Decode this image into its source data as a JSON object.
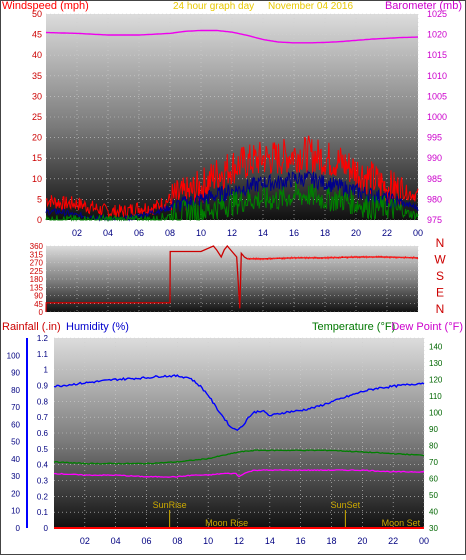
{
  "header": {
    "windspeed_label": "Windspeed (mph)",
    "period_label": "24 hour graph day",
    "date_label": "November 04 2016",
    "barometer_label": "Barometer (mb)"
  },
  "mid_panel": {
    "direction_labels": [
      "N",
      "W",
      "S",
      "E",
      "N"
    ]
  },
  "lower_header": {
    "rainfall_label": "Rainfall (.in)",
    "humidity_label": "Humidity (%)",
    "temperature_label": "Temperature (°F)",
    "dewpoint_label": "Dew Point (°F)"
  },
  "events": {
    "sunrise": "SunRise",
    "sunset": "SunSet",
    "moonrise": "Moon Rise",
    "moonset": "Moon Set"
  },
  "colors": {
    "windspeed": "#ff0000",
    "avg_wind": "#00008b",
    "wind_min": "#008000",
    "barometer": "#ee00ee",
    "humidity": "#0000ff",
    "temperature": "#008000",
    "dewpoint": "#ff00ff",
    "direction": "#cc0000",
    "rainfall": "#ff0000",
    "events": "#ccaa00"
  },
  "chart_data": [
    {
      "type": "line",
      "x_ticks": [
        "02",
        "04",
        "06",
        "08",
        "10",
        "12",
        "14",
        "16",
        "18",
        "20",
        "22",
        "00"
      ],
      "ylim": [
        0,
        50
      ],
      "y_ticks": [
        0,
        5,
        10,
        15,
        20,
        25,
        30,
        35,
        40,
        45,
        50
      ],
      "y2lim": [
        975,
        1025
      ],
      "y2_ticks": [
        975,
        980,
        985,
        990,
        995,
        1000,
        1005,
        1010,
        1015,
        1020,
        1025
      ],
      "grid": true,
      "series": [
        {
          "x": [
            0,
            2,
            4,
            6,
            8,
            9,
            10,
            11,
            12,
            13,
            14,
            15,
            16,
            17,
            18,
            19,
            20,
            21,
            22,
            23,
            24
          ],
          "values": [
            1020.5,
            1020.3,
            1019.9,
            1019.9,
            1020.3,
            1020.8,
            1021.0,
            1021.0,
            1020.6,
            1019.8,
            1018.8,
            1018.2,
            1018.0,
            1018.0,
            1018.1,
            1018.3,
            1018.6,
            1018.9,
            1019.1,
            1019.3,
            1019.4
          ]
        },
        {
          "x": [
            0,
            1,
            2,
            3,
            4,
            5,
            6,
            7,
            8,
            9,
            10,
            11,
            12,
            13,
            14,
            15,
            16,
            17,
            18,
            19,
            20,
            21,
            22,
            23,
            24
          ],
          "values": [
            5,
            4,
            4,
            3,
            2,
            2,
            3,
            3,
            5,
            6,
            8,
            11,
            13,
            14,
            15,
            15,
            16,
            16,
            15,
            14,
            12,
            10,
            8,
            7,
            6
          ]
        },
        {
          "x": [
            0,
            1,
            2,
            3,
            4,
            5,
            6,
            7,
            8,
            9,
            10,
            11,
            12,
            13,
            14,
            15,
            16,
            17,
            18,
            19,
            20,
            21,
            22,
            23,
            24
          ],
          "values": [
            2,
            2,
            1,
            1,
            0,
            0,
            1,
            2,
            3,
            4,
            5,
            6,
            7,
            8,
            9,
            9,
            10,
            10,
            9,
            8,
            7,
            6,
            5,
            4,
            3
          ]
        },
        {
          "x": [
            0,
            1,
            2,
            3,
            4,
            5,
            6,
            7,
            8,
            9,
            10,
            11,
            12,
            13,
            14,
            15,
            16,
            17,
            18,
            19,
            20,
            21,
            22,
            23,
            24
          ],
          "values": [
            0,
            0,
            0,
            0,
            0,
            0,
            0,
            0,
            1,
            2,
            2,
            3,
            4,
            5,
            5,
            5,
            6,
            6,
            5,
            5,
            4,
            3,
            3,
            2,
            1
          ]
        }
      ]
    },
    {
      "type": "line",
      "ylim": [
        0,
        360
      ],
      "y_ticks": [
        0,
        45,
        90,
        135,
        180,
        225,
        270,
        315,
        360
      ],
      "series": [
        {
          "x": [
            0,
            0.01,
            3,
            6,
            8,
            8.01,
            10,
            10.8,
            11,
            11.3,
            11.5,
            11.7,
            12,
            12.3,
            12.5,
            12.6,
            12.8,
            13,
            14,
            16,
            18,
            20,
            22,
            24
          ],
          "values": [
            0,
            50,
            50,
            50,
            50,
            330,
            330,
            360,
            340,
            300,
            340,
            360,
            330,
            300,
            20,
            320,
            300,
            290,
            290,
            295,
            295,
            300,
            300,
            295
          ]
        }
      ]
    },
    {
      "type": "line",
      "ylim": [
        0,
        1.2
      ],
      "y_ticks": [
        0,
        0.1,
        0.2,
        0.3,
        0.4,
        0.5,
        0.6,
        0.7,
        0.8,
        0.9,
        1,
        1.1,
        1.2
      ],
      "y_left_inner_lim": [
        0,
        100
      ],
      "y_left_inner_ticks": [
        0,
        10,
        20,
        30,
        40,
        50,
        60,
        70,
        80,
        90,
        100
      ],
      "y2lim": [
        30,
        145
      ],
      "y2_ticks": [
        30,
        40,
        50,
        60,
        70,
        80,
        90,
        100,
        110,
        120,
        130,
        140
      ],
      "series": [
        {
          "x": [
            0,
            2,
            4,
            6,
            7,
            8,
            8.8,
            9.5,
            10,
            10.5,
            11,
            11.5,
            12,
            12.3,
            12.6,
            13,
            13.5,
            14,
            14.5,
            15,
            16,
            17,
            18,
            19,
            20,
            21,
            22,
            23,
            24
          ],
          "values": [
            82,
            84,
            86,
            87,
            88,
            88,
            87,
            82,
            77,
            70,
            64,
            58,
            57,
            60,
            64,
            67,
            68,
            65,
            66,
            67,
            68,
            70,
            73,
            76,
            79,
            81,
            82,
            83,
            84
          ]
        },
        {
          "x": [
            0,
            2,
            4,
            6,
            8,
            10,
            11,
            12,
            13,
            14,
            16,
            18,
            20,
            22,
            24
          ],
          "values": [
            70,
            69,
            69,
            69,
            70,
            72,
            74,
            76,
            77,
            77,
            77,
            77,
            76,
            75,
            74
          ]
        },
        {
          "x": [
            0,
            2,
            4,
            6,
            7,
            8,
            9,
            10,
            11,
            11.8,
            12,
            12.3,
            13,
            14,
            16,
            18,
            20,
            22,
            24
          ],
          "values": [
            63,
            62,
            62,
            61,
            61,
            61,
            62,
            62,
            63,
            63,
            61,
            63,
            65,
            65,
            65,
            65,
            65,
            64,
            64
          ]
        },
        {
          "x": [
            0,
            24
          ],
          "values": [
            0,
            0
          ]
        }
      ]
    }
  ]
}
